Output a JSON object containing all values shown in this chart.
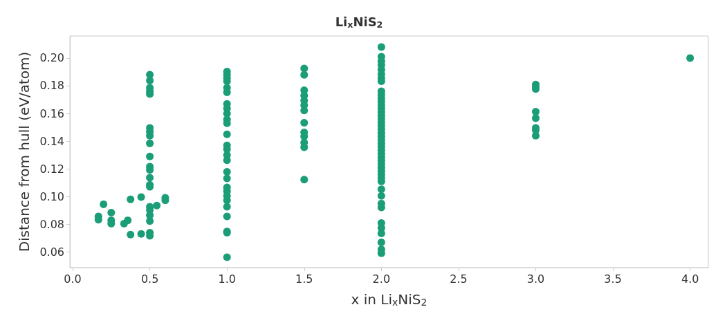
{
  "chart_data": {
    "type": "scatter",
    "title": "Li$_{x}$NiS$_{2}$",
    "xlabel": "x in Li$_{x}$NiS$_{2}$",
    "ylabel": "Distance from hull (eV/atom)",
    "xlim": [
      -0.018,
      4.118
    ],
    "ylim": [
      0.0488,
      0.2159
    ],
    "xticks": [
      {
        "value": 0,
        "label": "0.0"
      },
      0.5,
      {
        "value": 1,
        "label": "1.0"
      },
      1.5,
      {
        "value": 2,
        "label": "2.0"
      },
      2.5,
      {
        "value": 3,
        "label": "3.0"
      },
      3.5,
      {
        "value": 4,
        "label": "4.0"
      }
    ],
    "yticks": [
      0.06,
      0.08,
      {
        "value": 0.1,
        "label": "0.10"
      },
      0.12,
      0.14,
      0.16,
      0.18,
      {
        "value": 0.2,
        "label": "0.20"
      }
    ],
    "grid": false,
    "marker": "circle",
    "series": [
      {
        "color": "#1b9e77",
        "x": [
          0.167,
          0.167,
          0.2,
          0.25,
          0.25,
          0.25,
          0.333,
          0.357,
          0.375,
          0.375,
          0.444,
          0.444,
          0.5,
          0.5,
          0.5,
          0.5,
          0.5,
          0.5,
          0.5,
          0.5,
          0.5,
          0.5,
          0.5,
          0.5,
          0.5,
          0.5,
          0.5,
          0.5,
          0.5,
          0.5,
          0.5,
          0.5,
          0.5,
          0.545,
          0.6,
          0.6,
          1,
          1,
          1,
          1,
          1,
          1,
          1,
          1,
          1,
          1,
          1,
          1,
          1,
          1,
          1,
          1,
          1,
          1,
          1,
          1,
          1,
          1,
          1,
          1,
          1,
          1,
          1,
          1.5,
          1.5,
          1.5,
          1.5,
          1.5,
          1.5,
          1.5,
          1.5,
          1.5,
          1.5,
          1.5,
          1.5,
          1.5,
          2,
          2,
          2,
          2,
          2,
          2,
          2,
          2,
          2,
          2,
          2,
          2,
          2,
          2,
          2,
          2,
          2,
          2,
          2,
          2,
          2,
          2,
          2,
          2,
          2,
          2,
          2,
          2,
          2,
          2,
          2,
          2,
          2,
          2,
          2,
          2,
          2,
          2,
          2,
          2,
          2,
          2,
          2,
          2,
          2,
          3,
          3,
          3,
          3,
          3,
          3,
          3,
          3,
          4
        ],
        "values": [
          0.0857,
          0.0833,
          0.0945,
          0.0885,
          0.0829,
          0.0805,
          0.0805,
          0.0829,
          0.098,
          0.0726,
          0.0997,
          0.0731,
          0.188,
          0.1837,
          0.1785,
          0.176,
          0.174,
          0.1496,
          0.147,
          0.144,
          0.1384,
          0.129,
          0.1216,
          0.1193,
          0.1137,
          0.1085,
          0.1071,
          0.0927,
          0.0903,
          0.0866,
          0.0824,
          0.074,
          0.0717,
          0.0936,
          0.0992,
          0.0973,
          0.1902,
          0.1879,
          0.1855,
          0.1832,
          0.1785,
          0.1753,
          0.1669,
          0.1636,
          0.1599,
          0.1557,
          0.1529,
          0.1449,
          0.137,
          0.1342,
          0.13,
          0.1263,
          0.1179,
          0.1132,
          0.1067,
          0.1039,
          0.1006,
          0.0973,
          0.0927,
          0.0857,
          0.0749,
          0.074,
          0.0563,
          0.1925,
          0.1879,
          0.1767,
          0.1729,
          0.1692,
          0.1659,
          0.1622,
          0.1533,
          0.1463,
          0.1435,
          0.1389,
          0.1356,
          0.1123,
          0.2079,
          0.2009,
          0.1977,
          0.1949,
          0.1916,
          0.1883,
          0.1855,
          0.1832,
          0.176,
          0.1735,
          0.171,
          0.1685,
          0.166,
          0.1635,
          0.161,
          0.1585,
          0.156,
          0.1535,
          0.151,
          0.1485,
          0.146,
          0.1435,
          0.141,
          0.1385,
          0.136,
          0.1335,
          0.131,
          0.1285,
          0.126,
          0.1235,
          0.121,
          0.1185,
          0.116,
          0.1135,
          0.111,
          0.1053,
          0.1006,
          0.095,
          0.0922,
          0.081,
          0.0773,
          0.0735,
          0.067,
          0.0619,
          0.0591,
          0.1809,
          0.179,
          0.1776,
          0.1613,
          0.1566,
          0.1495,
          0.148,
          0.144,
          0.2
        ]
      }
    ]
  }
}
